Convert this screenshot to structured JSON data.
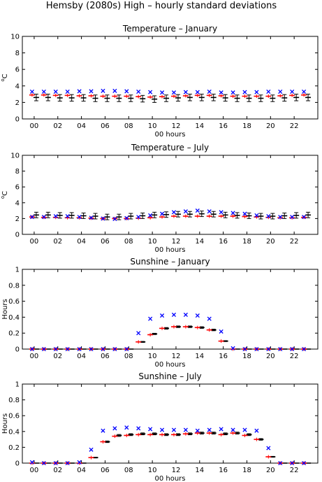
{
  "figure": {
    "title": "Hemsby (2080s) High – hourly standard deviations"
  },
  "chart_data": [
    {
      "type": "scatter",
      "title": "Temperature – January",
      "xlabel": "00 hours",
      "ylabel": "°C",
      "ylabel_main": "C",
      "ylabel_sup": "o",
      "xlim": [
        -1,
        24
      ],
      "ylim": [
        0,
        10
      ],
      "xticks": [
        0,
        2,
        4,
        6,
        8,
        10,
        12,
        14,
        16,
        18,
        20,
        22
      ],
      "xticklabels": [
        "00",
        "02",
        "04",
        "06",
        "08",
        "10",
        "12",
        "14",
        "16",
        "18",
        "20",
        "22"
      ],
      "yticks": [
        0,
        2,
        4,
        6,
        8,
        10
      ],
      "yticklabels": [
        "0",
        "2",
        "4",
        "6",
        "8",
        "10"
      ],
      "x": [
        0,
        1,
        2,
        3,
        4,
        5,
        6,
        7,
        8,
        9,
        10,
        11,
        12,
        13,
        14,
        15,
        16,
        17,
        18,
        19,
        20,
        21,
        22,
        23
      ],
      "blue_x": [
        3.3,
        3.3,
        3.3,
        3.3,
        3.35,
        3.35,
        3.4,
        3.4,
        3.35,
        3.3,
        3.25,
        3.2,
        3.2,
        3.25,
        3.25,
        3.3,
        3.2,
        3.2,
        3.25,
        3.25,
        3.3,
        3.3,
        3.3,
        3.3
      ],
      "red_mean": [
        2.9,
        2.9,
        2.85,
        2.85,
        2.8,
        2.8,
        2.75,
        2.75,
        2.75,
        2.7,
        2.65,
        2.7,
        2.75,
        2.8,
        2.85,
        2.85,
        2.8,
        2.75,
        2.75,
        2.75,
        2.75,
        2.8,
        2.85,
        2.9
      ],
      "black_mean": [
        2.6,
        2.6,
        2.55,
        2.55,
        2.55,
        2.5,
        2.5,
        2.5,
        2.5,
        2.45,
        2.4,
        2.5,
        2.55,
        2.6,
        2.6,
        2.6,
        2.55,
        2.5,
        2.5,
        2.5,
        2.5,
        2.55,
        2.6,
        2.6
      ],
      "black_err": [
        0.4,
        0.4,
        0.4,
        0.4,
        0.4,
        0.4,
        0.4,
        0.4,
        0.4,
        0.4,
        0.4,
        0.4,
        0.4,
        0.4,
        0.4,
        0.4,
        0.4,
        0.4,
        0.4,
        0.4,
        0.4,
        0.4,
        0.4,
        0.4
      ]
    },
    {
      "type": "scatter",
      "title": "Temperature – July",
      "xlabel": "00 hours",
      "ylabel": "°C",
      "ylabel_main": "C",
      "ylabel_sup": "o",
      "xlim": [
        -1,
        24
      ],
      "ylim": [
        0,
        10
      ],
      "xticks": [
        0,
        2,
        4,
        6,
        8,
        10,
        12,
        14,
        16,
        18,
        20,
        22
      ],
      "xticklabels": [
        "00",
        "02",
        "04",
        "06",
        "08",
        "10",
        "12",
        "14",
        "16",
        "18",
        "20",
        "22"
      ],
      "yticks": [
        0,
        2,
        4,
        6,
        8,
        10
      ],
      "yticklabels": [
        "0",
        "2",
        "4",
        "6",
        "8",
        "10"
      ],
      "x": [
        0,
        1,
        2,
        3,
        4,
        5,
        6,
        7,
        8,
        9,
        10,
        11,
        12,
        13,
        14,
        15,
        16,
        17,
        18,
        19,
        20,
        21,
        22,
        23
      ],
      "blue_x": [
        2.2,
        2.2,
        2.3,
        2.3,
        2.2,
        2.1,
        2.0,
        1.95,
        2.05,
        2.2,
        2.4,
        2.6,
        2.8,
        2.9,
        3.0,
        2.9,
        2.8,
        2.7,
        2.6,
        2.4,
        2.3,
        2.2,
        2.2,
        2.2
      ],
      "red_mean": [
        2.2,
        2.15,
        2.15,
        2.1,
        2.1,
        2.05,
        2.0,
        2.0,
        2.0,
        2.05,
        2.1,
        2.2,
        2.3,
        2.3,
        2.3,
        2.3,
        2.3,
        2.3,
        2.25,
        2.2,
        2.15,
        2.1,
        2.1,
        2.15
      ],
      "black_mean": [
        2.45,
        2.45,
        2.4,
        2.4,
        2.35,
        2.3,
        2.2,
        2.2,
        2.3,
        2.35,
        2.45,
        2.5,
        2.55,
        2.55,
        2.6,
        2.55,
        2.45,
        2.4,
        2.35,
        2.3,
        2.3,
        2.35,
        2.4,
        2.45
      ],
      "black_err": [
        0.35,
        0.35,
        0.35,
        0.35,
        0.35,
        0.35,
        0.35,
        0.35,
        0.35,
        0.35,
        0.35,
        0.35,
        0.35,
        0.35,
        0.35,
        0.35,
        0.35,
        0.35,
        0.35,
        0.35,
        0.35,
        0.35,
        0.35,
        0.35
      ]
    },
    {
      "type": "scatter",
      "title": "Sunshine – January",
      "xlabel": "00 hours",
      "ylabel": "Hours",
      "ylabel_main": "Hours",
      "ylabel_sup": "",
      "xlim": [
        -1,
        24
      ],
      "ylim": [
        0,
        1
      ],
      "xticks": [
        0,
        2,
        4,
        6,
        8,
        10,
        12,
        14,
        16,
        18,
        20,
        22
      ],
      "xticklabels": [
        "00",
        "02",
        "04",
        "06",
        "08",
        "10",
        "12",
        "14",
        "16",
        "18",
        "20",
        "22"
      ],
      "yticks": [
        0,
        0.2,
        0.4,
        0.6,
        0.8,
        1
      ],
      "yticklabels": [
        "0",
        "0.2",
        "0.4",
        "0.6",
        "0.8",
        "1"
      ],
      "x": [
        0,
        1,
        2,
        3,
        4,
        5,
        6,
        7,
        8,
        9,
        10,
        11,
        12,
        13,
        14,
        15,
        16,
        17,
        18,
        19,
        20,
        21,
        22,
        23
      ],
      "blue_x": [
        0,
        0,
        0,
        0,
        0,
        0,
        0,
        0,
        0,
        0.2,
        0.38,
        0.42,
        0.43,
        0.43,
        0.42,
        0.38,
        0.22,
        0.01,
        0,
        0,
        0,
        0,
        0,
        0
      ],
      "red_mean": [
        0,
        0,
        0,
        0,
        0,
        0,
        0,
        0,
        0,
        0.09,
        0.18,
        0.26,
        0.28,
        0.28,
        0.27,
        0.24,
        0.1,
        0,
        0,
        0,
        0,
        0,
        0,
        0
      ],
      "black_mean": [
        0,
        0,
        0,
        0,
        0,
        0,
        0,
        0,
        0,
        0.09,
        0.19,
        0.26,
        0.28,
        0.28,
        0.27,
        0.24,
        0.1,
        0,
        0,
        0,
        0,
        0,
        0,
        0
      ],
      "black_err": [
        0,
        0,
        0,
        0,
        0,
        0,
        0,
        0,
        0,
        0.006,
        0.008,
        0.01,
        0.01,
        0.01,
        0.01,
        0.01,
        0.006,
        0,
        0,
        0,
        0,
        0,
        0,
        0
      ]
    },
    {
      "type": "scatter",
      "title": "Sunshine – July",
      "xlabel": "00 hours",
      "ylabel": "Hours",
      "ylabel_main": "Hours",
      "ylabel_sup": "",
      "xlim": [
        -1,
        24
      ],
      "ylim": [
        0,
        1
      ],
      "xticks": [
        0,
        2,
        4,
        6,
        8,
        10,
        12,
        14,
        16,
        18,
        20,
        22
      ],
      "xticklabels": [
        "00",
        "02",
        "04",
        "06",
        "08",
        "10",
        "12",
        "14",
        "16",
        "18",
        "20",
        "22"
      ],
      "yticks": [
        0,
        0.2,
        0.4,
        0.6,
        0.8,
        1
      ],
      "yticklabels": [
        "0",
        "0.2",
        "0.4",
        "0.6",
        "0.8",
        "1"
      ],
      "x": [
        0,
        1,
        2,
        3,
        4,
        5,
        6,
        7,
        8,
        9,
        10,
        11,
        12,
        13,
        14,
        15,
        16,
        17,
        18,
        19,
        20,
        21,
        22,
        23
      ],
      "blue_x": [
        0.01,
        0,
        0,
        0,
        0.01,
        0.17,
        0.41,
        0.44,
        0.45,
        0.44,
        0.43,
        0.42,
        0.42,
        0.42,
        0.41,
        0.42,
        0.43,
        0.42,
        0.42,
        0.41,
        0.19,
        0,
        0,
        0
      ],
      "red_mean": [
        0,
        0,
        0,
        0,
        0,
        0.07,
        0.27,
        0.34,
        0.35,
        0.36,
        0.36,
        0.36,
        0.36,
        0.37,
        0.38,
        0.38,
        0.36,
        0.38,
        0.35,
        0.3,
        0.08,
        0,
        0,
        0
      ],
      "black_mean": [
        0,
        0,
        0,
        0,
        0,
        0.07,
        0.27,
        0.35,
        0.36,
        0.37,
        0.37,
        0.36,
        0.36,
        0.37,
        0.38,
        0.38,
        0.37,
        0.38,
        0.36,
        0.3,
        0.08,
        0,
        0,
        0
      ],
      "black_err": [
        0,
        0,
        0,
        0,
        0,
        0.005,
        0.01,
        0.012,
        0.012,
        0.012,
        0.012,
        0.012,
        0.012,
        0.012,
        0.012,
        0.012,
        0.012,
        0.012,
        0.012,
        0.01,
        0.005,
        0,
        0,
        0
      ]
    }
  ],
  "colors": {
    "blue": "#0000ff",
    "red": "#ff0000",
    "black": "#000000"
  }
}
